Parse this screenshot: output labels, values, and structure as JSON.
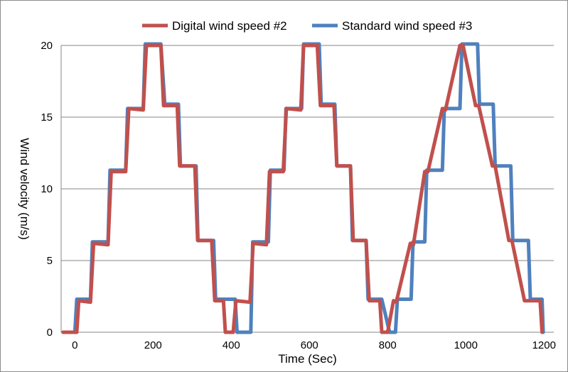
{
  "chart_data": {
    "type": "line",
    "xlabel": "Time (Sec)",
    "ylabel": "Wind velocity (m/s)",
    "xlim": [
      -35,
      1225
    ],
    "ylim": [
      0,
      20
    ],
    "x_ticks": [
      0,
      200,
      400,
      600,
      800,
      1000,
      1200
    ],
    "y_ticks": [
      0,
      5,
      10,
      15,
      20
    ],
    "grid": "horizontal",
    "legend_position": "top",
    "series": [
      {
        "name": "Standard wind speed #3",
        "color": "#4f81bd",
        "x": [
          -30,
          -5,
          0,
          5,
          40,
          45,
          85,
          90,
          130,
          135,
          175,
          180,
          220,
          230,
          265,
          270,
          310,
          315,
          355,
          360,
          370,
          380,
          410,
          415,
          450,
          455,
          495,
          500,
          535,
          540,
          580,
          585,
          625,
          630,
          665,
          670,
          705,
          710,
          745,
          750,
          780,
          785,
          805,
          820,
          825,
          860,
          865,
          895,
          900,
          940,
          945,
          985,
          990,
          1030,
          1035,
          1070,
          1075,
          1115,
          1120,
          1160,
          1165,
          1195,
          1198
        ],
        "y": [
          0,
          0,
          0,
          2.3,
          2.3,
          6.3,
          6.3,
          11.3,
          11.3,
          15.6,
          15.6,
          20.1,
          20.1,
          15.9,
          15.9,
          11.6,
          11.6,
          6.4,
          6.4,
          2.3,
          2.3,
          2.3,
          2.3,
          0,
          0,
          6.3,
          6.3,
          11.3,
          11.3,
          15.6,
          15.6,
          20.1,
          20.1,
          15.9,
          15.9,
          11.6,
          11.6,
          6.4,
          6.4,
          2.3,
          2.3,
          2.3,
          0,
          0,
          2.3,
          2.3,
          6.3,
          6.3,
          11.3,
          11.3,
          15.6,
          15.6,
          20.1,
          20.1,
          15.9,
          15.9,
          11.6,
          11.6,
          6.4,
          6.4,
          2.3,
          2.3,
          0
        ]
      },
      {
        "name": "Digital wind speed #2",
        "color": "#c0504d",
        "x": [
          -30,
          0,
          5,
          10,
          40,
          48,
          85,
          93,
          130,
          138,
          175,
          183,
          220,
          227,
          262,
          268,
          307,
          314,
          350,
          358,
          380,
          385,
          405,
          412,
          448,
          456,
          490,
          498,
          533,
          541,
          578,
          585,
          620,
          628,
          663,
          670,
          705,
          712,
          745,
          753,
          780,
          785,
          800,
          815,
          822,
          858,
          866,
          895,
          903,
          940,
          948,
          985,
          993,
          1025,
          1033,
          1068,
          1075,
          1110,
          1118,
          1150,
          1158,
          1190,
          1195
        ],
        "y": [
          0,
          0,
          0,
          2.2,
          2.1,
          6.2,
          6.1,
          11.2,
          11.2,
          15.6,
          15.5,
          20.0,
          20.0,
          15.8,
          15.8,
          11.6,
          11.6,
          6.4,
          6.4,
          2.2,
          2.2,
          0,
          0,
          2.2,
          2.1,
          6.2,
          6.1,
          11.2,
          11.2,
          15.6,
          15.5,
          20.0,
          20.0,
          15.8,
          15.8,
          11.6,
          11.6,
          6.4,
          6.4,
          2.2,
          2.2,
          0,
          0,
          2.2,
          2.1,
          6.2,
          6.1,
          11.2,
          11.2,
          15.6,
          15.5,
          20.0,
          20.0,
          15.8,
          15.8,
          11.6,
          11.6,
          6.4,
          6.4,
          2.2,
          2.2,
          2.2,
          0
        ]
      }
    ]
  }
}
